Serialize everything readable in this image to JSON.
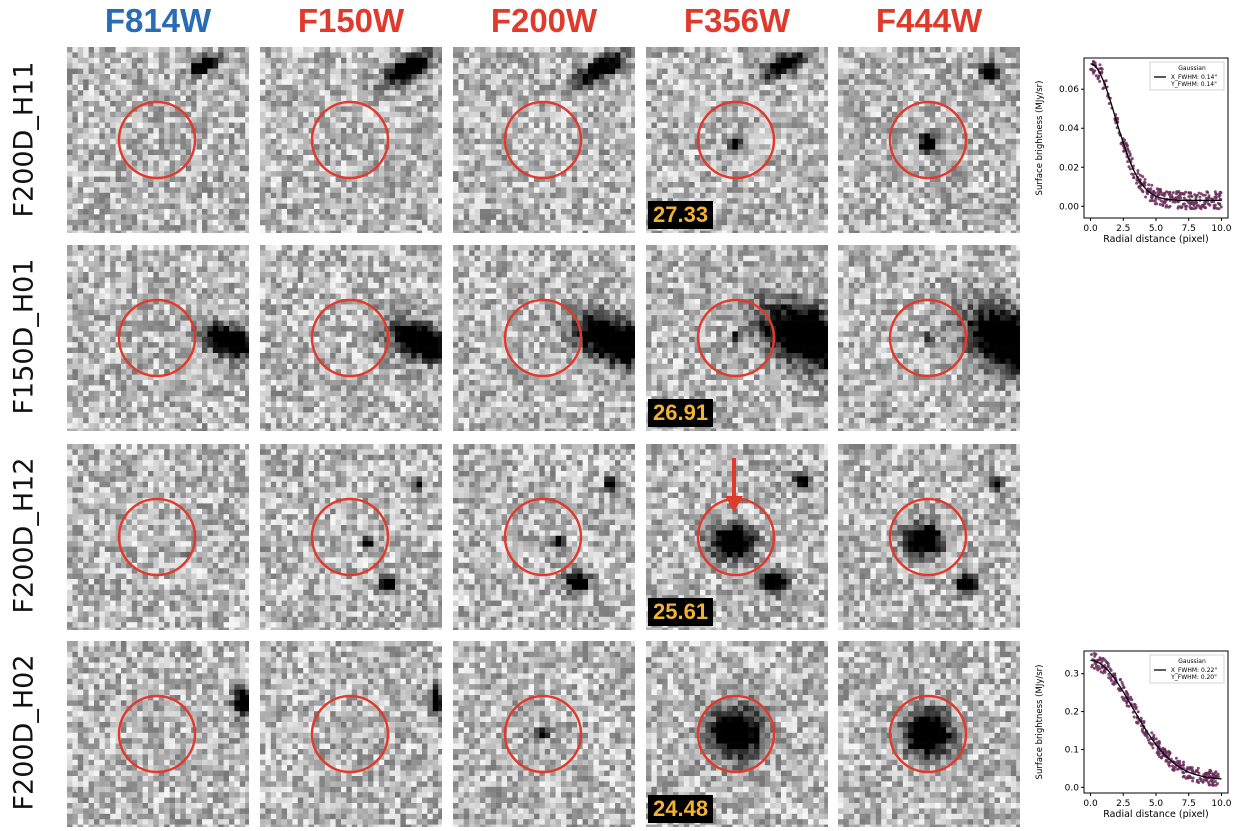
{
  "filters": [
    {
      "label": "F814W",
      "color": "#2a6cb3"
    },
    {
      "label": "F150W",
      "color": "#e03a2c"
    },
    {
      "label": "F200W",
      "color": "#e03a2c"
    },
    {
      "label": "F356W",
      "color": "#e03a2c"
    },
    {
      "label": "F444W",
      "color": "#e03a2c"
    }
  ],
  "sources": [
    {
      "name": "F200D_H11",
      "magnitude": "27.33"
    },
    {
      "name": "F150D_H01",
      "magnitude": "26.91"
    },
    {
      "name": "F200D_H12",
      "magnitude": "25.61"
    },
    {
      "name": "F200D_H02",
      "magnitude": "24.48"
    }
  ],
  "aperture_color": "#e03a2c",
  "arrow_color": "#e03a2c",
  "magnitude_text_color": "#f2b233",
  "chart_data": [
    {
      "type": "scatter",
      "source": "F200D_H11",
      "xlabel": "Radial distance (pixel)",
      "ylabel": "Surface brightness (MJy/sr)",
      "xlim": [
        -0.5,
        10.5
      ],
      "ylim": [
        -0.006,
        0.076
      ],
      "xticks": [
        0.0,
        2.5,
        5.0,
        7.5,
        10.0
      ],
      "xtick_labels": [
        "0.0",
        "2.5",
        "5.0",
        "7.5",
        "10.0"
      ],
      "yticks": [
        0.0,
        0.02,
        0.04,
        0.06
      ],
      "ytick_labels": [
        "0.00",
        "0.02",
        "0.04",
        "0.06"
      ],
      "legend": {
        "title": "Gaussian",
        "entries": [
          "X_FWHM: 0.14\"",
          "Y_FWHM: 0.14\""
        ],
        "position": "top-right"
      },
      "model": {
        "amplitude": 0.07,
        "sigma": 1.9,
        "offset": 0.003
      },
      "series": [
        {
          "name": "X_FWHM: 0.14\"",
          "type": "line",
          "color": "#000000"
        }
      ],
      "points_color": "#6b2d5c",
      "points_count": 320
    },
    {
      "type": "scatter",
      "source": "F200D_H02",
      "xlabel": "Radial distance (pixel)",
      "ylabel": "Surface brightness (MJy/sr)",
      "xlim": [
        -0.5,
        10.5
      ],
      "ylim": [
        -0.015,
        0.36
      ],
      "xticks": [
        0.0,
        2.5,
        5.0,
        7.5,
        10.0
      ],
      "xtick_labels": [
        "0.0",
        "2.5",
        "5.0",
        "7.5",
        "10.0"
      ],
      "yticks": [
        0.0,
        0.1,
        0.2,
        0.3
      ],
      "ytick_labels": [
        "0.0",
        "0.1",
        "0.2",
        "0.3"
      ],
      "legend": {
        "title": "Gaussian",
        "entries": [
          "X_FWHM: 0.22\"",
          "Y_FWHM: 0.20\""
        ],
        "position": "top-right"
      },
      "model": {
        "amplitude": 0.315,
        "sigma": 3.2,
        "offset": 0.02
      },
      "series": [
        {
          "name": "X_FWHM: 0.22\"",
          "type": "line",
          "color": "#000000"
        }
      ],
      "points_color": "#6b2d5c",
      "points_count": 320
    }
  ]
}
